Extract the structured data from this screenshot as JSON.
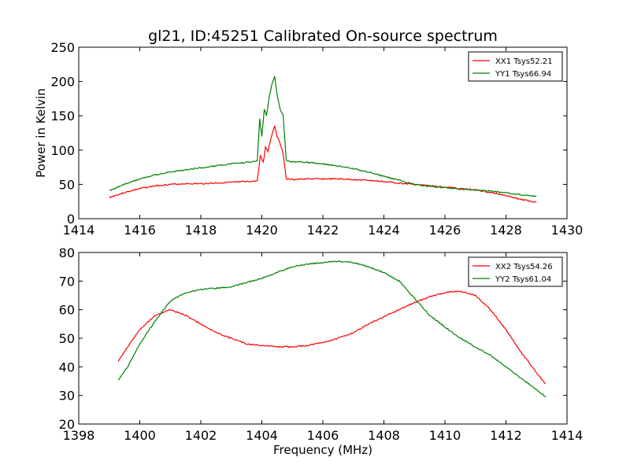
{
  "chart_data": [
    {
      "type": "line",
      "title": "gl21, ID:45251 Calibrated On-source spectrum",
      "xlabel": "",
      "ylabel": "Power in Kelvin",
      "xlim": [
        1414,
        1430
      ],
      "ylim": [
        0,
        250
      ],
      "xticks": [
        1414,
        1416,
        1418,
        1420,
        1422,
        1424,
        1426,
        1428,
        1430
      ],
      "yticks": [
        0,
        50,
        100,
        150,
        200,
        250
      ],
      "grid": false,
      "legend_position": "top-right",
      "series": [
        {
          "name": "XX1 Tsys52.21",
          "color": "#ff0000",
          "x": [
            1415.0,
            1415.5,
            1416.0,
            1416.5,
            1417.0,
            1417.5,
            1418.0,
            1418.5,
            1419.0,
            1419.5,
            1419.85,
            1419.95,
            1420.05,
            1420.12,
            1420.2,
            1420.3,
            1420.42,
            1420.5,
            1420.6,
            1420.7,
            1420.8,
            1421.0,
            1421.5,
            1422.0,
            1422.5,
            1423.0,
            1423.5,
            1424.0,
            1424.5,
            1425.0,
            1425.5,
            1426.0,
            1426.5,
            1427.0,
            1427.5,
            1428.0,
            1428.5,
            1429.0
          ],
          "y": [
            31,
            38,
            44,
            48,
            50,
            51,
            51,
            52,
            53,
            54,
            55,
            92,
            82,
            105,
            98,
            118,
            136,
            120,
            110,
            95,
            58,
            57,
            58,
            58,
            58,
            57,
            56,
            54,
            52,
            50,
            48,
            46,
            44,
            42,
            38,
            34,
            28,
            24
          ]
        },
        {
          "name": "YY1 Tsys66.94",
          "color": "#008000",
          "x": [
            1415.0,
            1415.5,
            1416.0,
            1416.5,
            1417.0,
            1417.5,
            1418.0,
            1418.5,
            1419.0,
            1419.5,
            1419.85,
            1419.93,
            1420.0,
            1420.08,
            1420.15,
            1420.25,
            1420.35,
            1420.42,
            1420.5,
            1420.6,
            1420.7,
            1420.8,
            1421.0,
            1421.5,
            1422.0,
            1422.5,
            1423.0,
            1423.5,
            1424.0,
            1424.5,
            1425.0,
            1425.5,
            1426.0,
            1426.5,
            1427.0,
            1427.5,
            1428.0,
            1428.5,
            1429.0
          ],
          "y": [
            41,
            50,
            58,
            64,
            68,
            71,
            74,
            77,
            80,
            82,
            84,
            145,
            120,
            160,
            150,
            180,
            200,
            207,
            180,
            160,
            150,
            85,
            83,
            82,
            80,
            77,
            73,
            68,
            62,
            56,
            50,
            47,
            45,
            43,
            42,
            40,
            38,
            35,
            33
          ]
        }
      ]
    },
    {
      "type": "line",
      "title": "",
      "xlabel": "Frequency (MHz)",
      "ylabel": "",
      "xlim": [
        1398,
        1414
      ],
      "ylim": [
        20,
        80
      ],
      "xticks": [
        1398,
        1400,
        1402,
        1404,
        1406,
        1408,
        1410,
        1412,
        1414
      ],
      "yticks": [
        20,
        30,
        40,
        50,
        60,
        70,
        80
      ],
      "grid": false,
      "legend_position": "top-right",
      "series": [
        {
          "name": "XX2 Tsys54.26",
          "color": "#ff0000",
          "x": [
            1399.3,
            1399.6,
            1400.0,
            1400.5,
            1401.0,
            1401.5,
            1402.0,
            1402.5,
            1403.0,
            1403.5,
            1404.0,
            1404.5,
            1405.0,
            1405.5,
            1406.0,
            1406.5,
            1407.0,
            1407.5,
            1408.0,
            1408.5,
            1409.0,
            1409.5,
            1410.0,
            1410.5,
            1411.0,
            1411.5,
            1412.0,
            1412.5,
            1413.0,
            1413.3
          ],
          "y": [
            42,
            47,
            53,
            58,
            60,
            58,
            55,
            52,
            50,
            48,
            47.5,
            47,
            47,
            47.5,
            48.5,
            50,
            52,
            55,
            57.5,
            60,
            62.5,
            64.5,
            66,
            66.5,
            65,
            60,
            53,
            45,
            38,
            34
          ]
        },
        {
          "name": "YY2 Tsys61.04",
          "color": "#008000",
          "x": [
            1399.3,
            1399.6,
            1400.0,
            1400.5,
            1401.0,
            1401.5,
            1402.0,
            1402.5,
            1403.0,
            1403.5,
            1404.0,
            1404.5,
            1405.0,
            1405.5,
            1406.0,
            1406.5,
            1407.0,
            1407.5,
            1408.0,
            1408.5,
            1409.0,
            1409.5,
            1410.0,
            1410.5,
            1411.0,
            1411.5,
            1412.0,
            1412.5,
            1413.0,
            1413.3
          ],
          "y": [
            35.5,
            40,
            48,
            56,
            63,
            66,
            67,
            67.5,
            68,
            69.5,
            71,
            73,
            75,
            76,
            76.5,
            77,
            76.5,
            75,
            73,
            70,
            64,
            58,
            54,
            50,
            47,
            44,
            40,
            36,
            32,
            29.5
          ]
        }
      ]
    }
  ]
}
